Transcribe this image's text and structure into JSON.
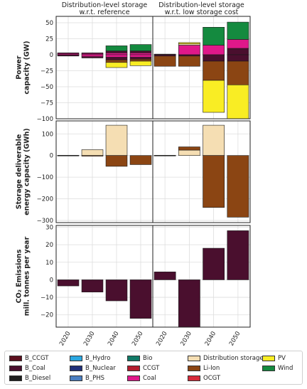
{
  "columns": [
    "Distribution-level storage\nw.r.t. reference",
    "Distribution-level storage\nw.r.t. low storage cost"
  ],
  "years": [
    "2020",
    "2030",
    "2040",
    "2050"
  ],
  "colors": {
    "B_CCGT": "#5c0f1e",
    "B_Coal": "#4a0f2e",
    "B_Diesel": "#1f1f1f",
    "B_Hydro": "#2aa7e0",
    "B_Nuclear": "#20307a",
    "B_PHS": "#4a7ec0",
    "Bio": "#127a67",
    "CCGT": "#b31d2e",
    "Coal": "#e0188a",
    "Distribution storage": "#f5deb3",
    "Li-Ion": "#8b4513",
    "OCGT": "#d62a3a",
    "PV": "#f9ed24",
    "Wind": "#148a3f"
  },
  "legend": [
    [
      "B_CCGT",
      "B_Coal",
      "B_Diesel"
    ],
    [
      "B_Hydro",
      "B_Nuclear",
      "B_PHS"
    ],
    [
      "Bio",
      "CCGT",
      "Coal"
    ],
    [
      "Distribution storage",
      "Li-Ion",
      "OCGT"
    ],
    [
      "PV",
      "Wind"
    ]
  ],
  "chart_data": [
    {
      "type": "bar",
      "row": 0,
      "ylabel": "Power\ncapacity (GW)",
      "ylim": [
        -100,
        60
      ],
      "yticks": [
        50,
        25,
        0,
        -25,
        -50,
        -75,
        -100
      ],
      "panels": [
        {
          "bars": [
            {
              "x": "2020",
              "segments": [
                [
                  "Coal",
                  0,
                  2
                ],
                [
                  "B_Coal",
                  2,
                  3
                ],
                [
                  "B_Coal",
                  0,
                  -2
                ]
              ]
            },
            {
              "x": "2030",
              "segments": [
                [
                  "Coal",
                  0,
                  2
                ],
                [
                  "B_Coal",
                  2,
                  3
                ],
                [
                  "Coal",
                  0,
                  -3
                ],
                [
                  "B_Coal",
                  -3,
                  -5
                ]
              ]
            },
            {
              "x": "2040",
              "segments": [
                [
                  "Coal",
                  0,
                  3
                ],
                [
                  "B_Coal",
                  3,
                  6
                ],
                [
                  "Wind",
                  6,
                  14
                ],
                [
                  "Coal",
                  0,
                  -4
                ],
                [
                  "B_Coal",
                  -4,
                  -8
                ],
                [
                  "Li-Ion",
                  -8,
                  -12
                ],
                [
                  "PV",
                  -12,
                  -20
                ]
              ]
            },
            {
              "x": "2050",
              "segments": [
                [
                  "Coal",
                  0,
                  3
                ],
                [
                  "B_Coal",
                  3,
                  6
                ],
                [
                  "Wind",
                  6,
                  16
                ],
                [
                  "Coal",
                  0,
                  -4
                ],
                [
                  "B_Coal",
                  -4,
                  -7
                ],
                [
                  "Li-Ion",
                  -7,
                  -10
                ],
                [
                  "PV",
                  -10,
                  -17
                ]
              ]
            }
          ]
        },
        {
          "bars": [
            {
              "x": "2020",
              "segments": [
                [
                  "B_Coal",
                  0,
                  1
                ],
                [
                  "B_Coal",
                  0,
                  -2
                ],
                [
                  "Li-Ion",
                  -2,
                  -18
                ]
              ]
            },
            {
              "x": "2030",
              "segments": [
                [
                  "Coal",
                  0,
                  15
                ],
                [
                  "Distribution storage",
                  15,
                  17
                ],
                [
                  "PV",
                  17,
                  19
                ],
                [
                  "B_Coal",
                  0,
                  -2
                ],
                [
                  "Li-Ion",
                  -2,
                  -18
                ]
              ]
            },
            {
              "x": "2040",
              "segments": [
                [
                  "Coal",
                  0,
                  15
                ],
                [
                  "Wind",
                  15,
                  43
                ],
                [
                  "B_Coal",
                  0,
                  -10
                ],
                [
                  "Li-Ion",
                  -10,
                  -40
                ],
                [
                  "PV",
                  -40,
                  -90
                ]
              ]
            },
            {
              "x": "2050",
              "segments": [
                [
                  "B_Coal",
                  0,
                  10
                ],
                [
                  "Coal",
                  10,
                  24
                ],
                [
                  "Wind",
                  24,
                  51
                ],
                [
                  "B_Coal",
                  0,
                  -10
                ],
                [
                  "Li-Ion",
                  -10,
                  -47
                ],
                [
                  "PV",
                  -47,
                  -100
                ]
              ]
            }
          ]
        }
      ]
    },
    {
      "type": "bar",
      "row": 1,
      "ylabel": "Storage deliverable\nenergy capacity (GWh)",
      "ylim": [
        -310,
        160
      ],
      "yticks": [
        100,
        0,
        -100,
        -200,
        -300
      ],
      "panels": [
        {
          "bars": [
            {
              "x": "2020",
              "segments": [
                [
                  "Distribution storage",
                  0,
                  1
                ],
                [
                  "Li-Ion",
                  0,
                  -1
                ]
              ]
            },
            {
              "x": "2030",
              "segments": [
                [
                  "Distribution storage",
                  0,
                  27
                ],
                [
                  "Li-Ion",
                  0,
                  -3
                ]
              ]
            },
            {
              "x": "2040",
              "segments": [
                [
                  "Distribution storage",
                  0,
                  140
                ],
                [
                  "Li-Ion",
                  0,
                  -50
                ]
              ]
            },
            {
              "x": "2050",
              "segments": [
                [
                  "Li-Ion",
                  0,
                  -42
                ]
              ]
            }
          ]
        },
        {
          "bars": [
            {
              "x": "2020",
              "segments": [
                [
                  "Distribution storage",
                  0,
                  1
                ],
                [
                  "Li-Ion",
                  0,
                  -1
                ]
              ]
            },
            {
              "x": "2030",
              "segments": [
                [
                  "Distribution storage",
                  0,
                  25
                ],
                [
                  "Li-Ion",
                  25,
                  40
                ]
              ]
            },
            {
              "x": "2040",
              "segments": [
                [
                  "Distribution storage",
                  0,
                  140
                ],
                [
                  "Li-Ion",
                  0,
                  -240
                ]
              ]
            },
            {
              "x": "2050",
              "segments": [
                [
                  "Li-Ion",
                  0,
                  -285
                ]
              ]
            }
          ]
        }
      ]
    },
    {
      "type": "bar",
      "row": 2,
      "ylabel": "CO₂ Emissions\nmill. tonnes per year",
      "ylim": [
        -27,
        31
      ],
      "yticks": [
        30,
        20,
        10,
        0,
        -10,
        -20
      ],
      "panels": [
        {
          "bars": [
            {
              "x": "2020",
              "segments": [
                [
                  "B_Coal",
                  0,
                  -3.5
                ]
              ]
            },
            {
              "x": "2030",
              "segments": [
                [
                  "B_Coal",
                  0,
                  -7
                ]
              ]
            },
            {
              "x": "2040",
              "segments": [
                [
                  "B_Coal",
                  0,
                  -12
                ]
              ]
            },
            {
              "x": "2050",
              "segments": [
                [
                  "B_Coal",
                  0,
                  -22
                ]
              ]
            }
          ]
        },
        {
          "bars": [
            {
              "x": "2020",
              "segments": [
                [
                  "B_Coal",
                  0,
                  4.5
                ]
              ]
            },
            {
              "x": "2030",
              "segments": [
                [
                  "B_Coal",
                  0,
                  -27
                ]
              ]
            },
            {
              "x": "2040",
              "segments": [
                [
                  "B_Coal",
                  0,
                  18
                ]
              ]
            },
            {
              "x": "2050",
              "segments": [
                [
                  "B_Coal",
                  0,
                  28
                ]
              ]
            }
          ]
        }
      ]
    }
  ]
}
